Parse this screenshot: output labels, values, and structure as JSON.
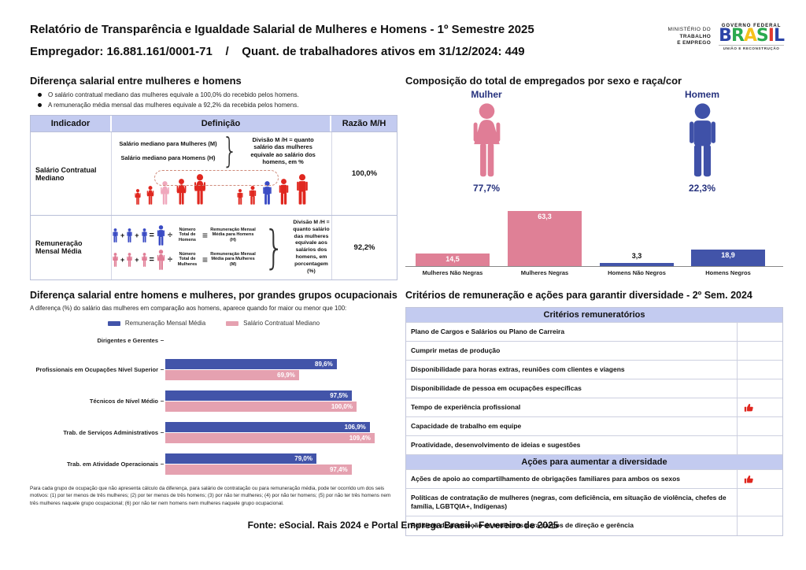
{
  "header": {
    "title": "Relatório de Transparência e Igualdade Salarial de Mulheres e Homens - 1º Semestre 2025",
    "employer_line": "Empregador: 16.881.161/0001-71    /    Quant. de trabalhadores ativos em 31/12/2024: 449",
    "ministry": [
      "MINISTÉRIO DO",
      "TRABALHO",
      "E EMPREGO"
    ],
    "gov": {
      "top": "GOVERNO FEDERAL",
      "letters": [
        "B",
        "R",
        "A",
        "S",
        "I",
        "L"
      ],
      "bottom": "UNIÃO E RECONSTRUÇÃO"
    }
  },
  "salary_gap": {
    "title": "Diferença salarial entre mulheres e homens",
    "bullets": [
      "O salário contratual mediano das mulheres equivale a 100,0% do recebido pelos homens.",
      "A remuneração média mensal das mulheres equivale a 92,2% da recebida pelos homens."
    ],
    "table": {
      "headers": [
        "Indicador",
        "Definição",
        "Razão M/H"
      ],
      "row1": {
        "indicator": "Salário Contratual Mediano",
        "def_line1": "Salário mediano para Mulheres (M)",
        "def_line2": "Salário mediano para Homens (H)",
        "def_note": "Divisão M /H = quanto salário das mulheres equivale ao salário dos homens, em %",
        "ratio": "100,0%"
      },
      "row2": {
        "indicator": "Remuneração Mensal Média",
        "eq1_divisor": "Número Total de Homens",
        "eq1_result": "Remuneração Mensal Média para Homens (H)",
        "eq2_divisor": "Número Total de Mulheres",
        "eq2_result": "Remuneração Mensal Média para Mulheres (M)",
        "def_note": "Divisão M /H = quanto salário das mulheres equivale aos salários dos homens, em porcentagem (%)",
        "ratio": "92,2%"
      }
    }
  },
  "composition": {
    "title": "Composição do total de empregados por sexo e raça/cor",
    "female_label": "Mulher",
    "female_pct": "77,7%",
    "male_label": "Homem",
    "male_pct": "22,3%"
  },
  "occupational": {
    "title": "Diferença salarial entre homens e mulheres, por grandes grupos ocupacionais",
    "subtitle": "A diferença (%) do salário das mulheres em comparação aos homens, aparece quando for maior ou menor que 100:",
    "legend": [
      "Remuneração Mensal Média",
      "Salário Contratual Mediano"
    ],
    "footnote": "Para cada grupo de ocupação que não apresenta cálculo da diferença, para salário de contratação ou para remuneração média, pode ter ocorrido um dos seis motivos: (1) por ter menos de três mulheres; (2) por ter menos de três homens; (3) por não ter mulheres; (4) por não ter homens; (5) por não ter três homens nem três mulheres naquele grupo ocupacional; (6) por não ter nem homens nem mulheres naquele grupo ocupacional."
  },
  "criteria": {
    "title": "Critérios de remuneração e ações para garantir diversidade - 2º Sem. 2024",
    "section1": "Critérios remuneratórios",
    "s1": [
      {
        "label": "Plano de Cargos e Salários ou Plano de Carreira",
        "checked": false
      },
      {
        "label": "Cumprir metas de produção",
        "checked": false
      },
      {
        "label": "Disponibilidade para horas extras, reuniões com clientes e viagens",
        "checked": false
      },
      {
        "label": "Disponibilidade de pessoa em ocupações específicas",
        "checked": false
      },
      {
        "label": "Tempo de experiência profissional",
        "checked": true
      },
      {
        "label": "Capacidade de trabalho em equipe",
        "checked": false
      },
      {
        "label": "Proatividade, desenvolvimento de ideias e sugestões",
        "checked": false
      }
    ],
    "section2": "Ações para aumentar a diversidade",
    "s2": [
      {
        "label": "Ações de apoio ao compartilhamento de obrigações familiares para ambos os sexos",
        "checked": true
      },
      {
        "label": "Políticas de contratação de mulheres (negras, com deficiência, em situação de violência, chefes de família, LGBTQIA+, Indígenas)",
        "checked": false
      },
      {
        "label": "Políticas de promoção de mulheres para cargos de direção e gerência",
        "checked": false
      }
    ]
  },
  "footer": "Fonte: eSocial. Rais 2024 e Portal Emprega Brasil - Fevereiro de 2025",
  "colors": {
    "female_pink": "#e07d96",
    "light_pink": "#e5a1b0",
    "male_blue": "#3f51a8",
    "figure_red": "#e0271f",
    "navy": "#26327e",
    "band": "#c3cbf0"
  },
  "chart_data": [
    {
      "type": "bar",
      "title": "Composição do total de empregados por sexo e raça/cor",
      "categories": [
        "Mulheres Não Negras",
        "Mulheres Negras",
        "Homens Não Negros",
        "Homens Negros"
      ],
      "values": [
        14.5,
        63.3,
        3.3,
        18.9
      ],
      "labels": [
        "14,5",
        "63,3",
        "3,3",
        "18,9"
      ],
      "colors": [
        "#df8096",
        "#df8096",
        "#4254a9",
        "#4254a9"
      ],
      "xlabel": "",
      "ylabel": "",
      "ylim": [
        0,
        70
      ],
      "grid": false,
      "annotations": {
        "female_share": 77.7,
        "male_share": 22.3
      }
    },
    {
      "type": "bar",
      "orientation": "horizontal-grouped",
      "title": "Diferença salarial entre homens e mulheres, por grandes grupos ocupacionais",
      "categories": [
        "Dirigentes e Gerentes",
        "Profissionais em Ocupações Nível Superior",
        "Técnicos de Nível Médio",
        "Trab. de Serviços Administrativos",
        "Trab. em Atividade Operacionais"
      ],
      "series": [
        {
          "name": "Remuneração Mensal Média",
          "color": "#4254a9",
          "values": [
            null,
            89.6,
            97.5,
            106.9,
            79.0
          ],
          "labels": [
            "",
            "89,6%",
            "97,5%",
            "106,9%",
            "79,0%"
          ]
        },
        {
          "name": "Salário Contratual Mediano",
          "color": "#e5a1b0",
          "values": [
            null,
            69.9,
            100.0,
            109.4,
            97.4
          ],
          "labels": [
            "",
            "69,9%",
            "100,0%",
            "109,4%",
            "97,4%"
          ]
        }
      ],
      "xlim": [
        0,
        115
      ],
      "legend_position": "top",
      "grid": false
    }
  ]
}
